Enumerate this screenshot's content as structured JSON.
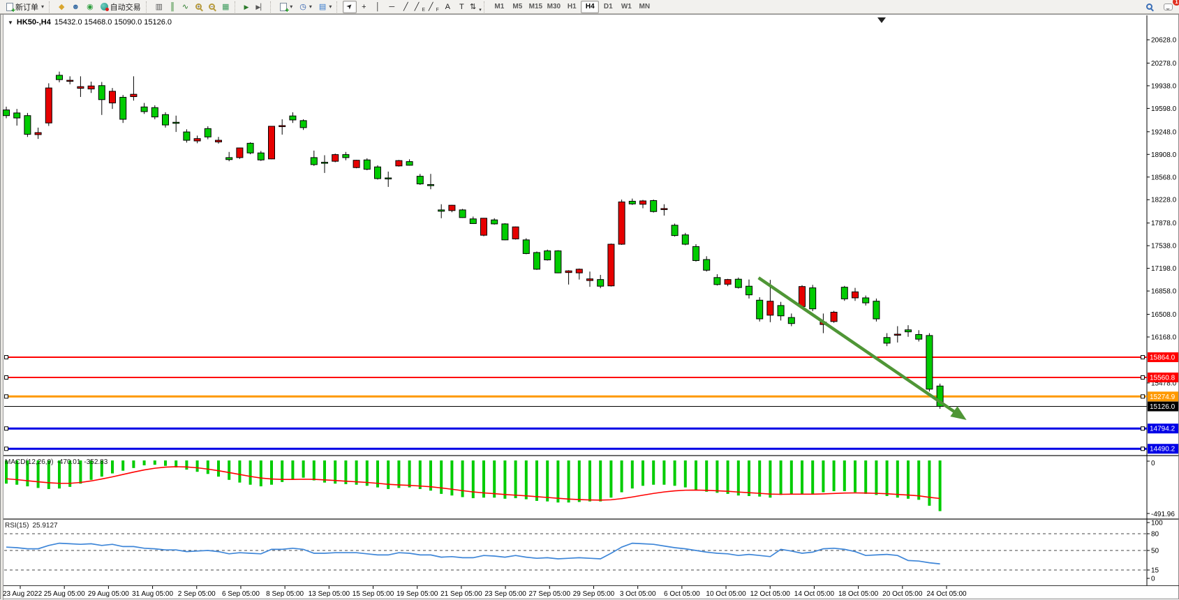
{
  "toolbar": {
    "new_order_label": "新订单",
    "auto_trading_label": "自动交易",
    "timeframes": [
      "M1",
      "M5",
      "M15",
      "M30",
      "H1",
      "H4",
      "D1",
      "W1",
      "MN"
    ],
    "active_timeframe": "H4",
    "annotation_tools": [
      "cursor",
      "crosshair",
      "vertical-line",
      "horizontal-line",
      "trendline",
      "equidistant-channel",
      "fibonacci",
      "text",
      "text-label",
      "arrows-list"
    ],
    "notification_count": "1"
  },
  "window": {
    "symbol_period": "HK50-,H4",
    "ohlc_text": "15432.0 15468.0 15090.0 15126.0"
  },
  "chart_data": {
    "type": "candlestick",
    "symbol": "HK50-",
    "timeframe": "H4",
    "color_convention": "red-bullish-green-bearish",
    "colors": {
      "bearish_candle": "#00CC00",
      "bullish_candle": "#E60000",
      "wick": "#000000"
    },
    "current_bar": {
      "open": 15432.0,
      "high": 15468.0,
      "low": 15090.0,
      "close": 15126.0
    },
    "y_visible_range": [
      14390,
      20990
    ],
    "y_axis_ticks": [
      20628.0,
      20278.0,
      19938.0,
      19598.0,
      19248.0,
      18908.0,
      18568.0,
      18228.0,
      17878.0,
      17538.0,
      17198.0,
      16858.0,
      16508.0,
      16168.0,
      15478.0
    ],
    "x_axis_labels": [
      "23 Aug 2022",
      "25 Aug 05:00",
      "29 Aug 05:00",
      "31 Aug 05:00",
      "2 Sep 05:00",
      "6 Sep 05:00",
      "8 Sep 05:00",
      "13 Sep 05:00",
      "15 Sep 05:00",
      "19 Sep 05:00",
      "21 Sep 05:00",
      "23 Sep 05:00",
      "27 Sep 05:00",
      "29 Sep 05:00",
      "3 Oct 05:00",
      "6 Oct 05:00",
      "10 Oct 05:00",
      "12 Oct 05:00",
      "14 Oct 05:00",
      "18 Oct 05:00",
      "20 Oct 05:00",
      "24 Oct 05:00"
    ],
    "candles": [
      [
        19575,
        19625,
        19450,
        19490
      ],
      [
        19530,
        19590,
        19340,
        19455
      ],
      [
        19490,
        19530,
        19170,
        19210
      ],
      [
        19205,
        19310,
        19140,
        19235
      ],
      [
        19380,
        19975,
        19335,
        19905
      ],
      [
        20095,
        20150,
        19990,
        20030
      ],
      [
        20015,
        20080,
        19960,
        20020
      ],
      [
        19900,
        20080,
        19770,
        19925
      ],
      [
        19890,
        20000,
        19830,
        19935
      ],
      [
        19940,
        19995,
        19500,
        19730
      ],
      [
        19680,
        19905,
        19590,
        19855
      ],
      [
        19765,
        19800,
        19380,
        19435
      ],
      [
        19775,
        20080,
        19715,
        19810
      ],
      [
        19620,
        19680,
        19515,
        19550
      ],
      [
        19610,
        19645,
        19435,
        19470
      ],
      [
        19505,
        19540,
        19310,
        19350
      ],
      [
        19390,
        19490,
        19245,
        19375
      ],
      [
        19245,
        19285,
        19085,
        19120
      ],
      [
        19110,
        19190,
        19075,
        19145
      ],
      [
        19295,
        19330,
        19135,
        19170
      ],
      [
        19095,
        19170,
        19070,
        19120
      ],
      [
        18860,
        18945,
        18805,
        18830
      ],
      [
        18860,
        19010,
        18840,
        19005
      ],
      [
        19075,
        19090,
        18910,
        18930
      ],
      [
        18930,
        18960,
        18810,
        18825
      ],
      [
        18840,
        19335,
        18835,
        19330
      ],
      [
        19335,
        19435,
        19205,
        19340
      ],
      [
        19485,
        19540,
        19380,
        19425
      ],
      [
        19415,
        19435,
        19275,
        19310
      ],
      [
        18860,
        18965,
        18735,
        18755
      ],
      [
        18790,
        18895,
        18630,
        18785
      ],
      [
        18805,
        18920,
        18790,
        18905
      ],
      [
        18905,
        18945,
        18820,
        18860
      ],
      [
        18710,
        18825,
        18700,
        18820
      ],
      [
        18825,
        18850,
        18670,
        18685
      ],
      [
        18720,
        18745,
        18530,
        18545
      ],
      [
        18555,
        18650,
        18420,
        18550
      ],
      [
        18735,
        18825,
        18725,
        18815
      ],
      [
        18800,
        18835,
        18740,
        18745
      ],
      [
        18580,
        18615,
        18450,
        18465
      ],
      [
        18455,
        18615,
        18385,
        18440
      ],
      [
        18075,
        18160,
        17950,
        18055
      ],
      [
        18065,
        18150,
        18040,
        18145
      ],
      [
        18075,
        18090,
        17955,
        17960
      ],
      [
        17940,
        17975,
        17865,
        17870
      ],
      [
        17695,
        17955,
        17680,
        17950
      ],
      [
        17925,
        17950,
        17855,
        17865
      ],
      [
        17865,
        17875,
        17620,
        17625
      ],
      [
        17640,
        17825,
        17630,
        17820
      ],
      [
        17625,
        17650,
        17410,
        17420
      ],
      [
        17435,
        17450,
        17175,
        17185
      ],
      [
        17460,
        17480,
        17315,
        17325
      ],
      [
        17460,
        17470,
        17125,
        17130
      ],
      [
        17135,
        17170,
        16955,
        17160
      ],
      [
        17130,
        17195,
        17030,
        17185
      ],
      [
        17015,
        17150,
        16920,
        17040
      ],
      [
        17030,
        17100,
        16900,
        16930
      ],
      [
        16935,
        17570,
        16925,
        17560
      ],
      [
        17560,
        18230,
        17550,
        18195
      ],
      [
        18205,
        18245,
        18150,
        18165
      ],
      [
        18160,
        18225,
        18100,
        18210
      ],
      [
        18215,
        18230,
        18035,
        18050
      ],
      [
        18085,
        18160,
        17990,
        18095
      ],
      [
        17845,
        17870,
        17675,
        17690
      ],
      [
        17700,
        17730,
        17545,
        17560
      ],
      [
        17525,
        17560,
        17300,
        17315
      ],
      [
        17330,
        17380,
        17150,
        17170
      ],
      [
        17060,
        17110,
        16940,
        16955
      ],
      [
        16960,
        17040,
        16930,
        17030
      ],
      [
        17035,
        17060,
        16895,
        16910
      ],
      [
        16930,
        17030,
        16745,
        16800
      ],
      [
        16720,
        16765,
        16400,
        16440
      ],
      [
        16495,
        17025,
        16390,
        16705
      ],
      [
        16640,
        16695,
        16415,
        16485
      ],
      [
        16460,
        16520,
        16330,
        16370
      ],
      [
        16625,
        16945,
        16615,
        16925
      ],
      [
        16905,
        16950,
        16555,
        16590
      ],
      [
        16355,
        16520,
        16225,
        16390
      ],
      [
        16400,
        16560,
        16380,
        16540
      ],
      [
        16915,
        16935,
        16710,
        16740
      ],
      [
        16755,
        16905,
        16710,
        16845
      ],
      [
        16755,
        16790,
        16640,
        16680
      ],
      [
        16705,
        16745,
        16400,
        16440
      ],
      [
        16160,
        16225,
        16030,
        16075
      ],
      [
        16200,
        16330,
        16085,
        16210
      ],
      [
        16275,
        16345,
        16170,
        16245
      ],
      [
        16205,
        16270,
        16100,
        16135
      ],
      [
        16190,
        16225,
        15350,
        15385
      ],
      [
        15432,
        15468,
        15090,
        15126
      ]
    ],
    "hlines": [
      {
        "price": 15864.0,
        "label": "15864.0",
        "color": "#FF0000",
        "stroke_width": 2,
        "selected": true
      },
      {
        "price": 15560.8,
        "label": "15560.8",
        "color": "#FF0000",
        "stroke_width": 2,
        "selected": true
      },
      {
        "price": 15274.9,
        "label": "15274.9",
        "color": "#FF9900",
        "stroke_width": 3,
        "selected": true
      },
      {
        "price": 15126.0,
        "label": "15126.0",
        "color": "#000000",
        "stroke_width": 1,
        "selected": false
      },
      {
        "price": 14794.2,
        "label": "14794.2",
        "color": "#0000E6",
        "stroke_width": 3,
        "selected": true
      },
      {
        "price": 14490.2,
        "label": "14490.2",
        "color": "#0000E6",
        "stroke_width": 3,
        "selected": true
      }
    ],
    "trend_arrow": {
      "from": {
        "bar_index": 70.9,
        "price": 17057
      },
      "to": {
        "bar_index": 90.5,
        "price": 14922
      },
      "color": "#4F9636"
    },
    "macd": {
      "title": "MACD(12,26,9)",
      "current_macd": -470.01,
      "current_signal": -352.83,
      "axis_labels": [
        "0",
        "-491.96"
      ],
      "histogram_color": "#00CC00",
      "signal_color": "#FF0000",
      "histogram": [
        -215,
        -225,
        -240,
        -255,
        -265,
        -260,
        -245,
        -215,
        -180,
        -150,
        -120,
        -95,
        -70,
        -45,
        -40,
        -50,
        -65,
        -85,
        -105,
        -125,
        -150,
        -180,
        -205,
        -225,
        -240,
        -225,
        -200,
        -175,
        -160,
        -185,
        -205,
        -215,
        -220,
        -225,
        -235,
        -250,
        -265,
        -255,
        -250,
        -265,
        -280,
        -310,
        -325,
        -340,
        -350,
        -345,
        -345,
        -355,
        -350,
        -360,
        -375,
        -380,
        -390,
        -390,
        -385,
        -380,
        -380,
        -345,
        -295,
        -260,
        -235,
        -225,
        -225,
        -235,
        -250,
        -275,
        -290,
        -300,
        -310,
        -325,
        -330,
        -335,
        -345,
        -320,
        -310,
        -315,
        -310,
        -295,
        -285,
        -285,
        -295,
        -310,
        -320,
        -330,
        -345,
        -355,
        -365,
        -420,
        -470.01
      ],
      "signal": [
        -170,
        -178,
        -188,
        -198,
        -207,
        -212,
        -212,
        -204,
        -190,
        -172,
        -152,
        -130,
        -108,
        -88,
        -72,
        -62,
        -58,
        -60,
        -68,
        -80,
        -95,
        -112,
        -130,
        -148,
        -163,
        -172,
        -176,
        -176,
        -174,
        -175,
        -180,
        -186,
        -192,
        -198,
        -204,
        -212,
        -221,
        -227,
        -231,
        -237,
        -244,
        -255,
        -267,
        -280,
        -292,
        -301,
        -308,
        -316,
        -322,
        -328,
        -336,
        -343,
        -351,
        -358,
        -363,
        -366,
        -368,
        -365,
        -354,
        -339,
        -322,
        -306,
        -292,
        -282,
        -276,
        -275,
        -277,
        -281,
        -286,
        -293,
        -299,
        -305,
        -312,
        -314,
        -313,
        -313,
        -313,
        -310,
        -306,
        -302,
        -301,
        -302,
        -305,
        -309,
        -315,
        -321,
        -328,
        -342,
        -352.83
      ]
    },
    "rsi": {
      "title": "RSI(15)",
      "current": 25.9127,
      "levels": [
        100,
        80,
        50,
        15,
        0
      ],
      "dashed_levels": [
        80,
        50,
        15
      ],
      "line_color": "#3E86D8",
      "values": [
        56,
        55,
        53,
        53,
        59,
        63,
        62,
        61,
        62,
        59,
        61,
        57,
        57,
        54,
        53,
        51,
        51,
        48,
        49,
        50,
        48,
        44,
        46,
        45,
        44,
        52,
        52,
        54,
        52,
        45,
        45,
        46,
        46,
        46,
        44,
        42,
        42,
        46,
        45,
        42,
        42,
        38,
        39,
        37,
        37,
        41,
        40,
        38,
        41,
        38,
        36,
        37,
        35,
        36,
        37,
        36,
        35,
        45,
        56,
        63,
        62,
        61,
        58,
        55,
        53,
        50,
        47,
        45,
        44,
        41,
        43,
        41,
        39,
        52,
        49,
        45,
        47,
        53,
        54,
        52,
        48,
        41,
        42,
        43,
        41,
        32,
        31,
        28,
        25.91
      ]
    }
  }
}
